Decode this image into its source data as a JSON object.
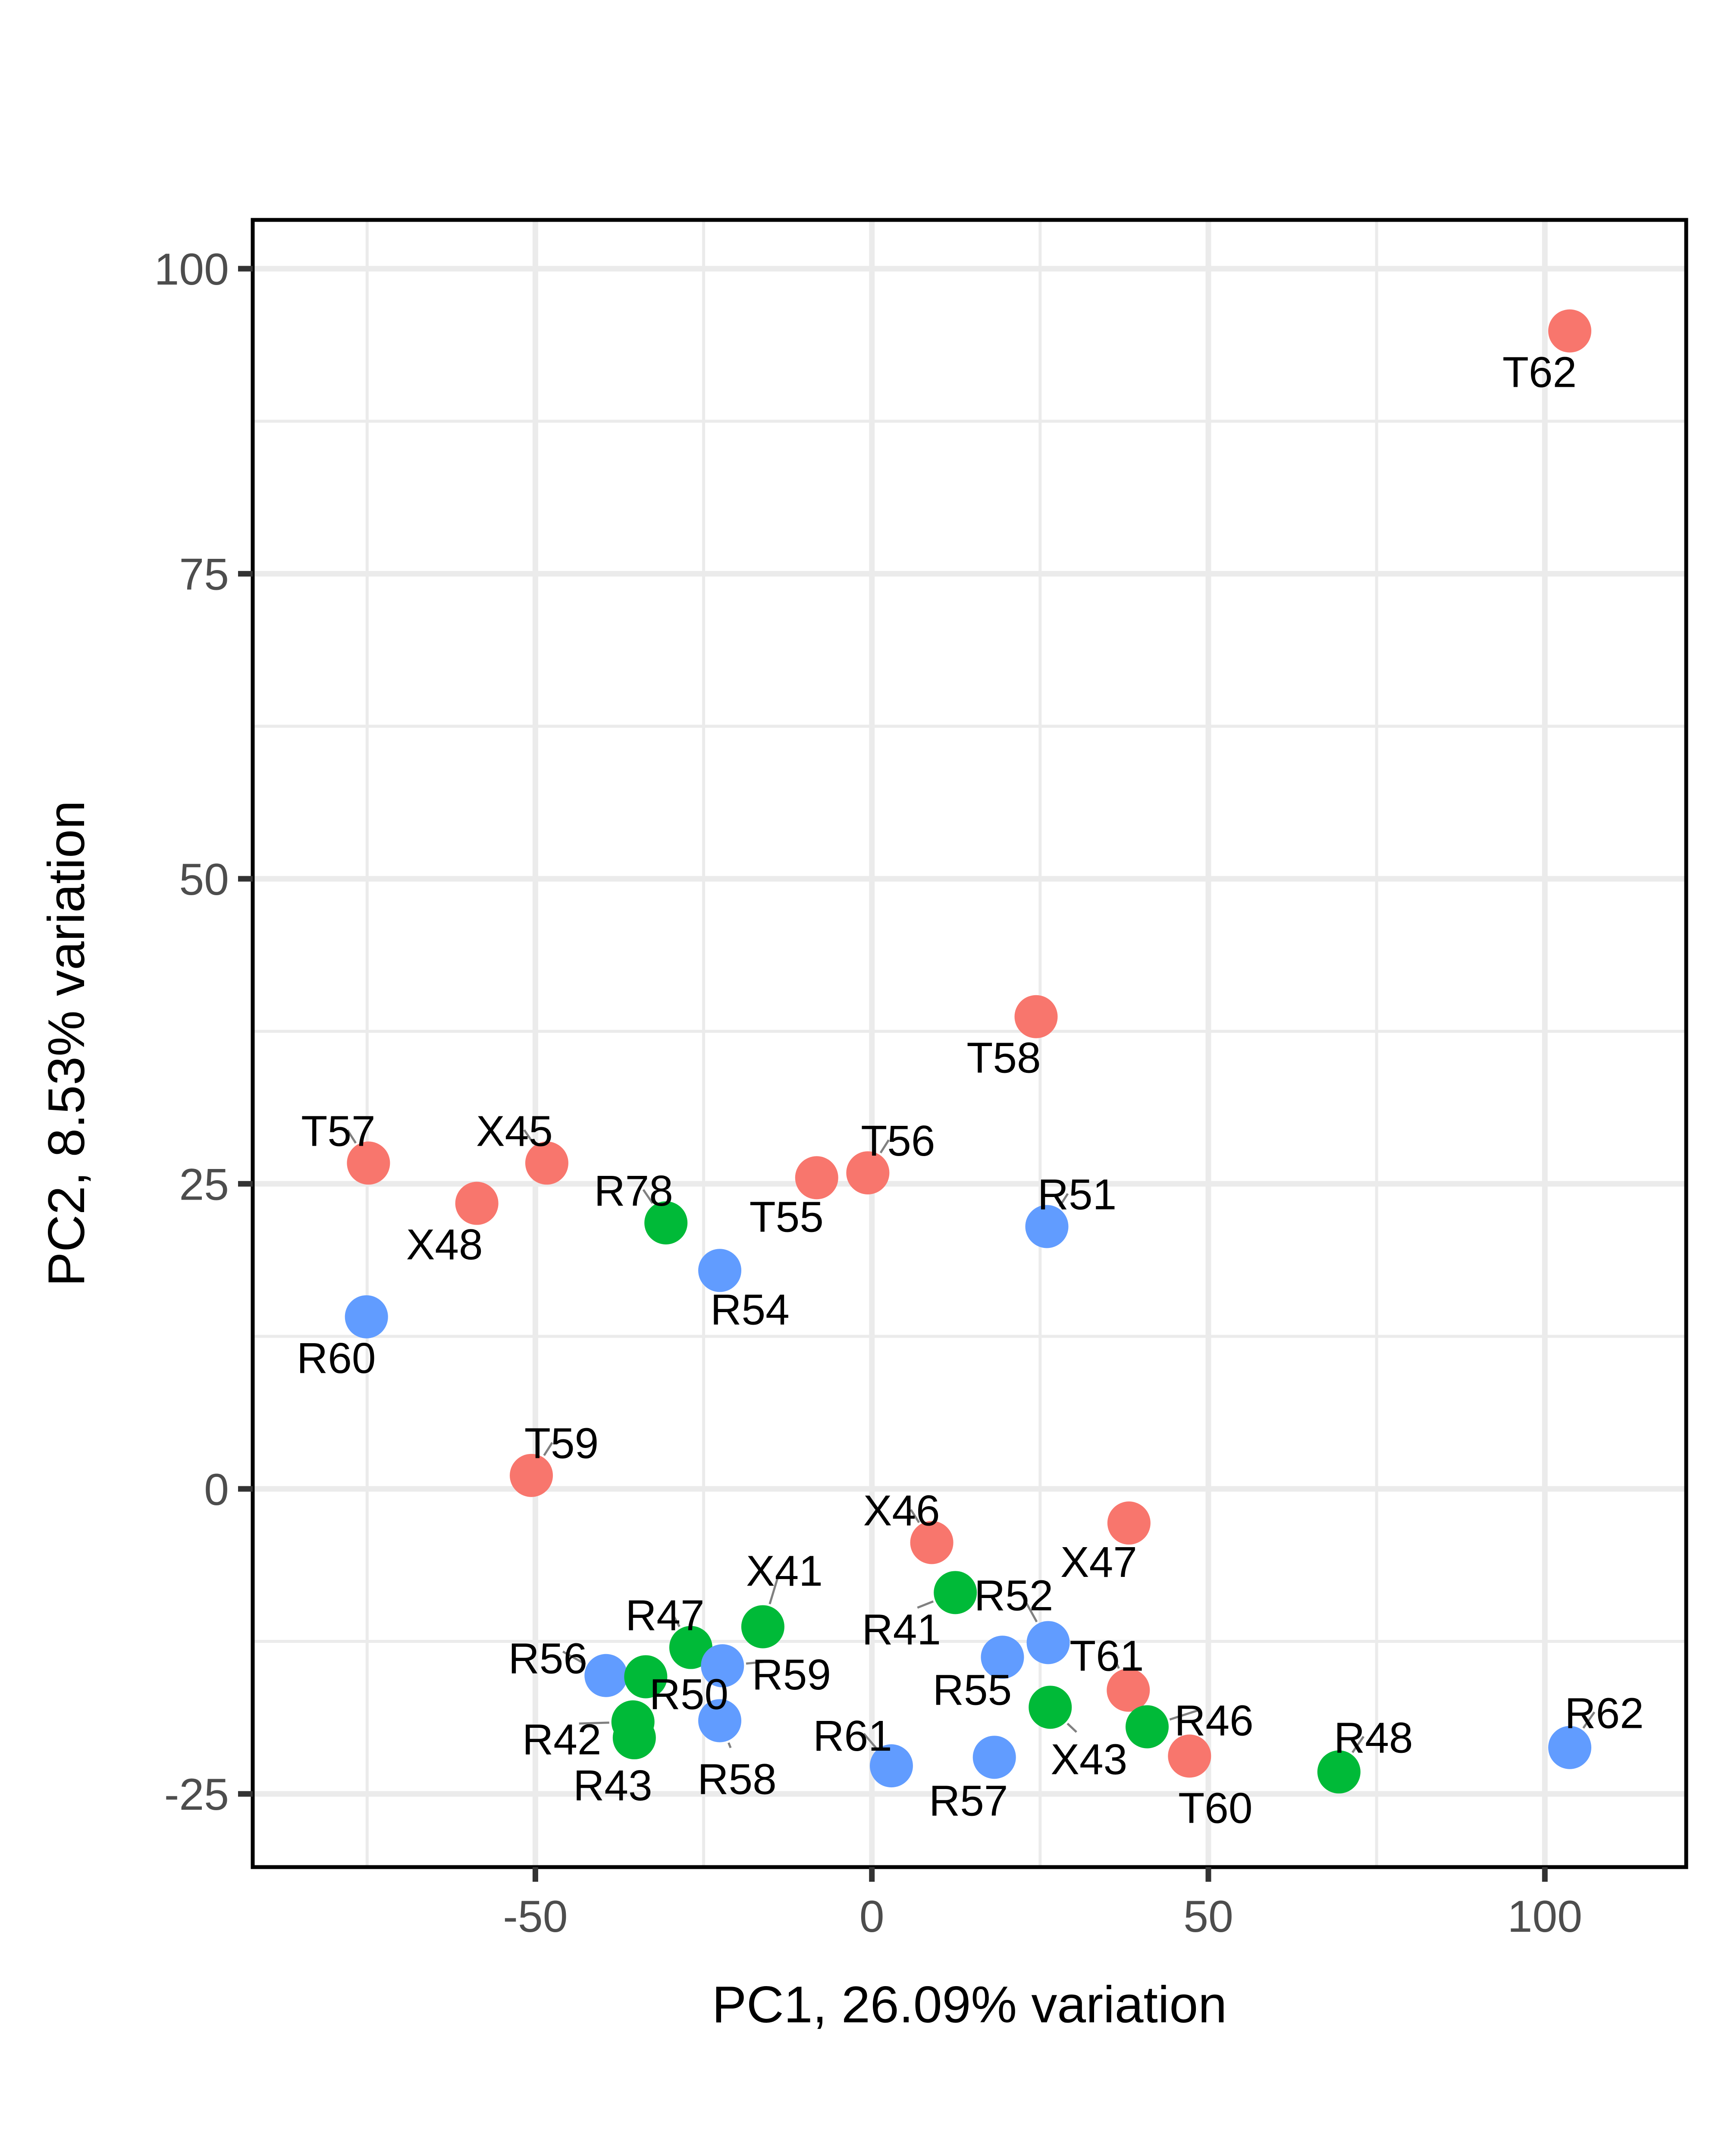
{
  "chart_data": {
    "type": "scatter",
    "title": "",
    "xlabel": "PC1, 26.09% variation",
    "ylabel": "PC2, 8.53% variation",
    "xlim": [
      -92,
      121
    ],
    "ylim": [
      -31,
      104
    ],
    "x_ticks": [
      -50,
      0,
      50,
      100
    ],
    "x_tick_labels": [
      "-50",
      "0",
      "50",
      "100"
    ],
    "y_ticks": [
      -25,
      0,
      25,
      50,
      75,
      100
    ],
    "y_tick_labels": [
      "-25",
      "0",
      "25",
      "50",
      "75",
      "100"
    ],
    "grid": true,
    "legend": "none",
    "colors": {
      "red": "#F8766D",
      "green": "#00BA38",
      "blue": "#619CFF"
    },
    "points": [
      {
        "label": "T62",
        "x": 103.7,
        "y": 94.9,
        "color": "red"
      },
      {
        "label": "T58",
        "x": 24.4,
        "y": 38.7,
        "color": "red"
      },
      {
        "label": "T57",
        "x": -74.8,
        "y": 26.7,
        "color": "red"
      },
      {
        "label": "X45",
        "x": -48.3,
        "y": 26.7,
        "color": "red"
      },
      {
        "label": "X48",
        "x": -58.7,
        "y": 23.4,
        "color": "red"
      },
      {
        "label": "T56",
        "x": -0.6,
        "y": 25.9,
        "color": "red"
      },
      {
        "label": "T55",
        "x": -8.2,
        "y": 25.5,
        "color": "red"
      },
      {
        "label": "R78",
        "x": -30.6,
        "y": 21.8,
        "color": "green"
      },
      {
        "label": "R51",
        "x": 26.0,
        "y": 21.5,
        "color": "blue"
      },
      {
        "label": "R54",
        "x": -22.6,
        "y": 17.9,
        "color": "blue"
      },
      {
        "label": "R60",
        "x": -75.1,
        "y": 14.1,
        "color": "blue"
      },
      {
        "label": "T59",
        "x": -50.6,
        "y": 1.1,
        "color": "red"
      },
      {
        "label": "X46",
        "x": 8.9,
        "y": -4.4,
        "color": "red"
      },
      {
        "label": "X47",
        "x": 38.2,
        "y": -2.8,
        "color": "red"
      },
      {
        "label": "R41",
        "x": 12.4,
        "y": -8.5,
        "color": "green"
      },
      {
        "label": "X41",
        "x": -16.2,
        "y": -11.3,
        "color": "green"
      },
      {
        "label": "R52",
        "x": 26.2,
        "y": -12.6,
        "color": "blue"
      },
      {
        "label": "R47",
        "x": -26.9,
        "y": -13.0,
        "color": "green"
      },
      {
        "label": "R59",
        "x": -22.2,
        "y": -14.5,
        "color": "blue"
      },
      {
        "label": "R55",
        "x": 19.4,
        "y": -13.8,
        "color": "blue"
      },
      {
        "label": "R56",
        "x": -39.5,
        "y": -15.3,
        "color": "blue"
      },
      {
        "label": "R50",
        "x": -33.6,
        "y": -15.4,
        "color": "green"
      },
      {
        "label": "T61",
        "x": 38.1,
        "y": -16.5,
        "color": "red"
      },
      {
        "label": "X43",
        "x": 26.5,
        "y": -17.9,
        "color": "green"
      },
      {
        "label": "R42",
        "x": -35.5,
        "y": -19.1,
        "color": "green"
      },
      {
        "label": "R58",
        "x": -22.6,
        "y": -19.0,
        "color": "blue"
      },
      {
        "label": "R46",
        "x": 40.9,
        "y": -19.5,
        "color": "green"
      },
      {
        "label": "R43",
        "x": -35.3,
        "y": -20.4,
        "color": "green"
      },
      {
        "label": "R62",
        "x": 103.7,
        "y": -21.2,
        "color": "blue"
      },
      {
        "label": "T60",
        "x": 47.2,
        "y": -21.9,
        "color": "red"
      },
      {
        "label": "R57",
        "x": 18.2,
        "y": -22.0,
        "color": "blue"
      },
      {
        "label": "R61",
        "x": 2.9,
        "y": -22.7,
        "color": "blue"
      },
      {
        "label": "R48",
        "x": 69.4,
        "y": -23.2,
        "color": "green"
      }
    ]
  }
}
